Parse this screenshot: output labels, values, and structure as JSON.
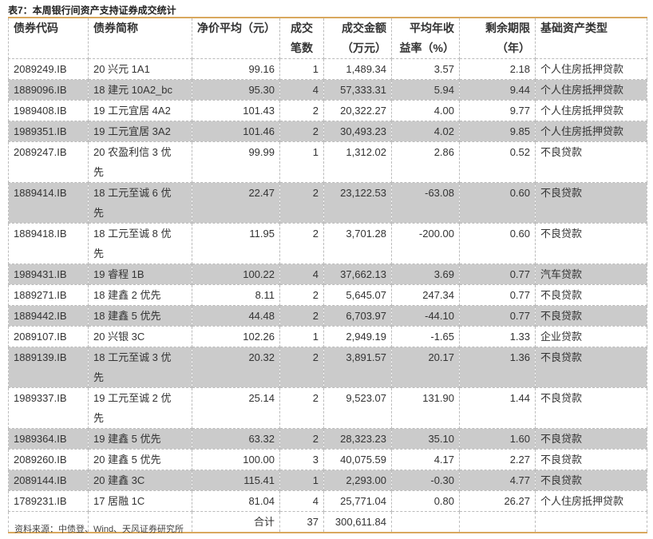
{
  "title": "表7：本周银行间资产支持证券成交统计",
  "headers": [
    [
      "债券代码"
    ],
    [
      "债券简称"
    ],
    [
      "净价平均（元）"
    ],
    [
      "成交",
      "笔数"
    ],
    [
      "成交金额",
      "（万元）"
    ],
    [
      "平均年收",
      "益率（%）"
    ],
    [
      "剩余期限",
      "（年）"
    ],
    [
      "基础资产类型"
    ]
  ],
  "rows": [
    [
      "2089249.IB",
      "20 兴元 1A1",
      "99.16",
      "1",
      "1,489.34",
      "3.57",
      "2.18",
      "个人住房抵押贷款"
    ],
    [
      "1889096.IB",
      "18 建元 10A2_bc",
      "95.30",
      "4",
      "57,333.31",
      "5.94",
      "9.44",
      "个人住房抵押贷款"
    ],
    [
      "1989408.IB",
      "19 工元宜居 4A2",
      "101.43",
      "2",
      "20,322.27",
      "4.00",
      "9.77",
      "个人住房抵押贷款"
    ],
    [
      "1989351.IB",
      "19 工元宜居 3A2",
      "101.46",
      "2",
      "30,493.23",
      "4.02",
      "9.85",
      "个人住房抵押贷款"
    ],
    [
      "2089247.IB",
      "20 农盈利信 3 优先",
      "99.99",
      "1",
      "1,312.02",
      "2.86",
      "0.52",
      "不良贷款"
    ],
    [
      "1889414.IB",
      "18 工元至诚 6 优先",
      "22.47",
      "2",
      "23,122.53",
      "-63.08",
      "0.60",
      "不良贷款"
    ],
    [
      "1889418.IB",
      "18 工元至诚 8 优先",
      "11.95",
      "2",
      "3,701.28",
      "-200.00",
      "0.60",
      "不良贷款"
    ],
    [
      "1989431.IB",
      "19 睿程 1B",
      "100.22",
      "4",
      "37,662.13",
      "3.69",
      "0.77",
      "汽车贷款"
    ],
    [
      "1889271.IB",
      "18 建鑫 2 优先",
      "8.11",
      "2",
      "5,645.07",
      "247.34",
      "0.77",
      "不良贷款"
    ],
    [
      "1889442.IB",
      "18 建鑫 5 优先",
      "44.48",
      "2",
      "6,703.97",
      "-44.10",
      "0.77",
      "不良贷款"
    ],
    [
      "2089107.IB",
      "20 兴银 3C",
      "102.26",
      "1",
      "2,949.19",
      "-1.65",
      "1.33",
      "企业贷款"
    ],
    [
      "1889139.IB",
      "18 工元至诚 3 优先",
      "20.32",
      "2",
      "3,891.57",
      "20.17",
      "1.36",
      "不良贷款"
    ],
    [
      "1989337.IB",
      "19 工元至诚 2 优先",
      "25.14",
      "2",
      "9,523.07",
      "131.90",
      "1.44",
      "不良贷款"
    ],
    [
      "1989364.IB",
      "19 建鑫 5 优先",
      "63.32",
      "2",
      "28,323.23",
      "35.10",
      "1.60",
      "不良贷款"
    ],
    [
      "2089260.IB",
      "20 建鑫 5 优先",
      "100.00",
      "3",
      "40,075.59",
      "4.17",
      "2.27",
      "不良贷款"
    ],
    [
      "2089144.IB",
      "20 建鑫 3C",
      "115.41",
      "1",
      "2,293.00",
      "-0.30",
      "4.77",
      "不良贷款"
    ],
    [
      "1789231.IB",
      "17 居融 1C",
      "81.04",
      "4",
      "25,771.04",
      "0.80",
      "26.27",
      "个人住房抵押贷款"
    ]
  ],
  "total": {
    "label": "合计",
    "count": "37",
    "amount": "300,611.84"
  },
  "source": "资料来源：中债登、Wind、天风证券研究所",
  "colors": {
    "accent_border": "#d9a85e",
    "row_stripe": "#cbcbcb"
  }
}
